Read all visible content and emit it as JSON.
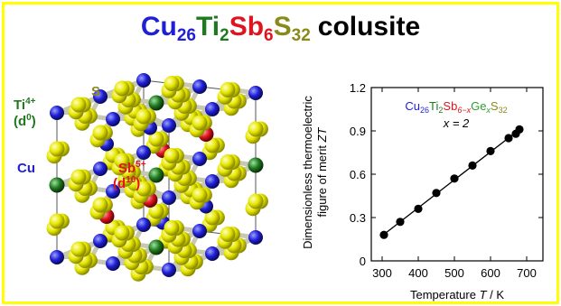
{
  "title": {
    "cu": "Cu",
    "cu_n": "26",
    "ti": "Ti",
    "ti_n": "2",
    "sb": "Sb",
    "sb_n": "6",
    "s": "S",
    "s_n": "32",
    "word": "colusite"
  },
  "labels": {
    "ti": "Ti",
    "ti_charge": "4+",
    "ti_d": "(d",
    "ti_d_sup": "0",
    "ti_close": ")",
    "s": "S",
    "cu": "Cu",
    "sb": "Sb",
    "sb_charge": "5+",
    "sb_d": "(d",
    "sb_d_sup": "10",
    "sb_close": ")"
  },
  "colors": {
    "cu": "#1f1fd6",
    "ti": "#1f7a1f",
    "sb": "#e0141e",
    "s": "#d8d800",
    "s_text": "#8a8a1a",
    "border": "#ffff00"
  },
  "chart_data": {
    "type": "scatter",
    "formula": {
      "cu": "Cu",
      "cu_n": "26",
      "ti": "Ti",
      "ti_n": "2",
      "sb": "Sb",
      "sb_n": "6−x",
      "ge": "Ge",
      "ge_n": "x",
      "s": "S",
      "s_n": "32"
    },
    "annotation": "x = 2",
    "xlabel": "Temperature T / K",
    "ylabel_line1": "Dimensionless thermoelectric",
    "ylabel_line2": "figure of merit ZT",
    "xlim": [
      270,
      745
    ],
    "ylim": [
      0,
      1.2
    ],
    "xticks": [
      300,
      400,
      500,
      600,
      700
    ],
    "yticks": [
      0,
      0.3,
      0.6,
      0.9,
      1.2
    ],
    "ytick_labels": [
      "0",
      "0.3",
      "0.6",
      "0.9",
      "1.2"
    ],
    "series": [
      {
        "x": [
          305,
          350,
          400,
          450,
          500,
          550,
          600,
          650,
          670,
          680
        ],
        "y": [
          0.18,
          0.27,
          0.36,
          0.47,
          0.57,
          0.66,
          0.76,
          0.85,
          0.88,
          0.91
        ]
      }
    ],
    "fit_line": true
  }
}
